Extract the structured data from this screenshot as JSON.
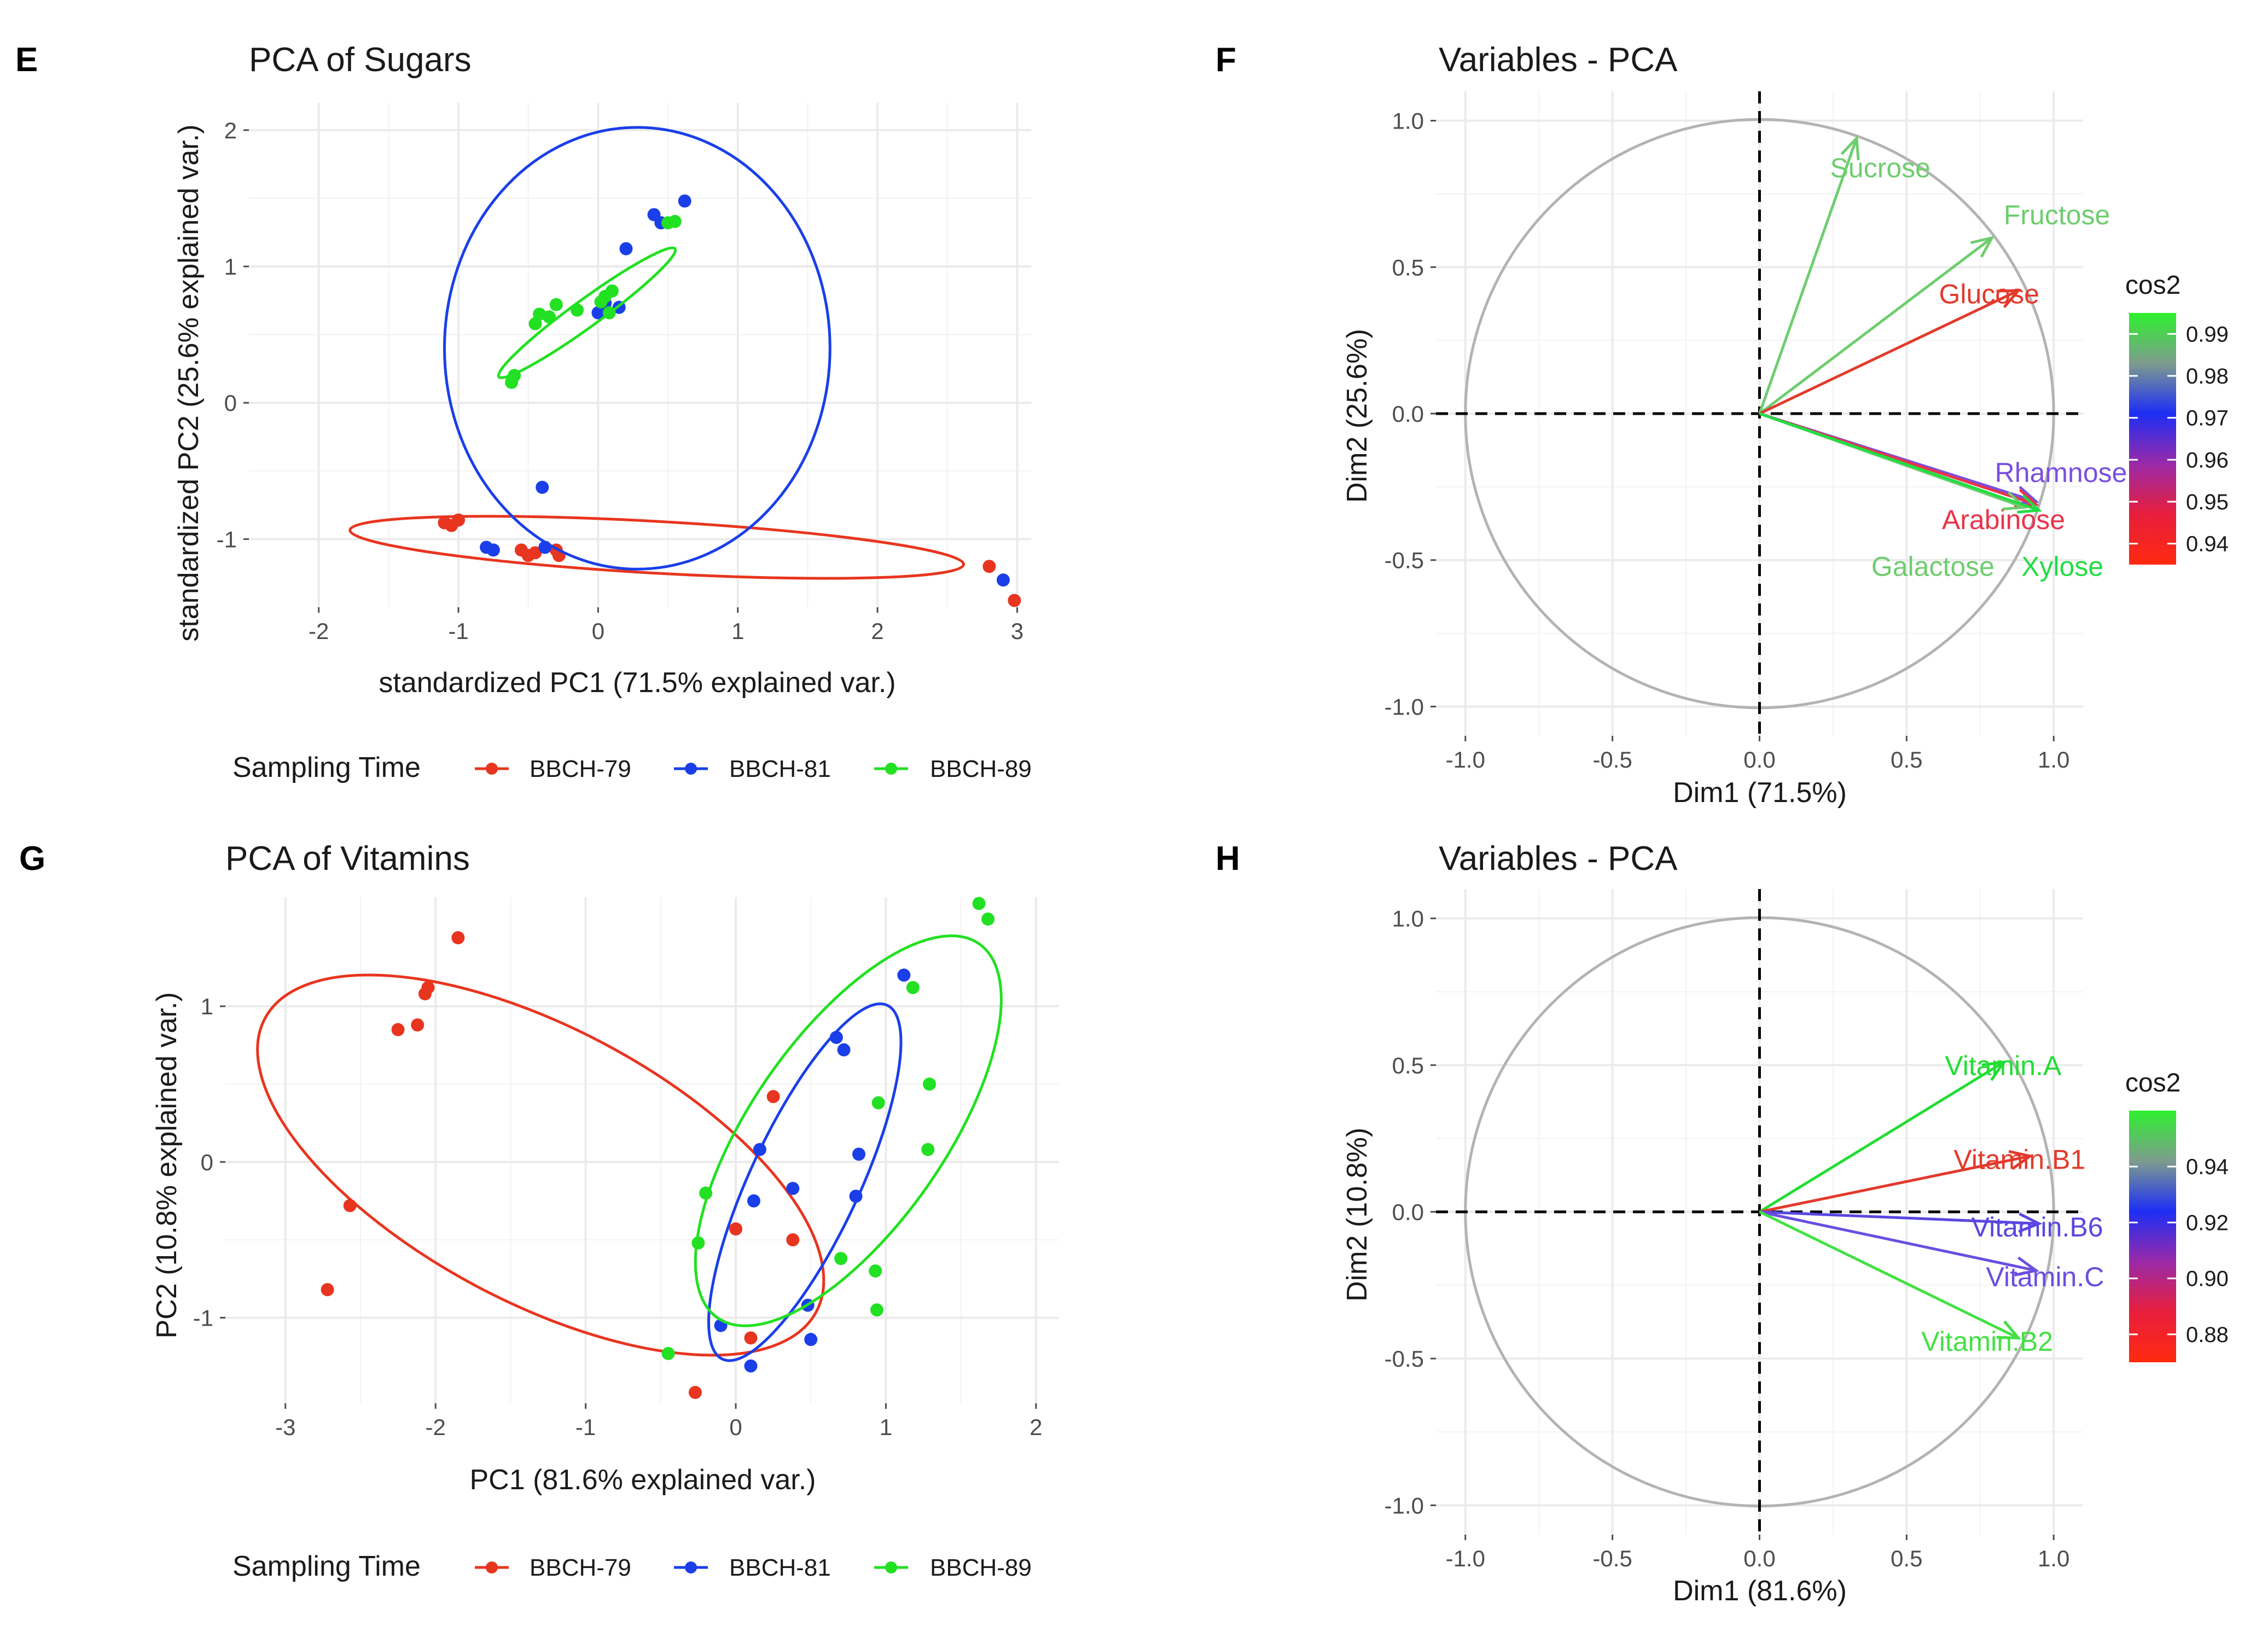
{
  "chart_data": [
    {
      "panel": "E",
      "type": "scatter",
      "title": "PCA of Sugars",
      "xlabel": "standardized PC1 (71.5% explained var.)",
      "ylabel": "standardized PC2 (25.6% explained var.)",
      "xlim": [
        -2.5,
        3.1
      ],
      "ylim": [
        -1.5,
        2.2
      ],
      "xticks": [
        -2,
        -1,
        0,
        1,
        2,
        3
      ],
      "yticks": [
        -1,
        0,
        1,
        2
      ],
      "legend": {
        "title": "Sampling Time",
        "position": "bottom"
      },
      "series": [
        {
          "name": "BBCH-79",
          "color": "#e8351f",
          "points": [
            [
              -1.1,
              -0.88
            ],
            [
              -1.05,
              -0.9
            ],
            [
              -1.0,
              -0.86
            ],
            [
              -0.55,
              -1.08
            ],
            [
              -0.5,
              -1.12
            ],
            [
              -0.45,
              -1.1
            ],
            [
              -0.3,
              -1.08
            ],
            [
              -0.28,
              -1.12
            ],
            [
              2.8,
              -1.2
            ],
            [
              2.98,
              -1.45
            ]
          ],
          "ellipse": {
            "cx": 0.42,
            "cy": -1.06,
            "rx": 2.2,
            "ry": 0.19,
            "angle": -3.2
          }
        },
        {
          "name": "BBCH-81",
          "color": "#1a3fe8",
          "points": [
            [
              -0.8,
              -1.06
            ],
            [
              -0.75,
              -1.08
            ],
            [
              -0.4,
              -0.62
            ],
            [
              -0.38,
              -1.06
            ],
            [
              0.0,
              0.66
            ],
            [
              0.05,
              0.73
            ],
            [
              0.15,
              0.7
            ],
            [
              0.2,
              1.13
            ],
            [
              0.4,
              1.38
            ],
            [
              0.45,
              1.32
            ],
            [
              0.62,
              1.48
            ],
            [
              2.9,
              -1.3
            ]
          ],
          "ellipse": {
            "cx": 0.28,
            "cy": 0.4,
            "rx": 1.38,
            "ry": 1.62,
            "angle": 0
          }
        },
        {
          "name": "BBCH-89",
          "color": "#22e022",
          "points": [
            [
              -0.62,
              0.15
            ],
            [
              -0.6,
              0.2
            ],
            [
              -0.45,
              0.58
            ],
            [
              -0.42,
              0.65
            ],
            [
              -0.35,
              0.63
            ],
            [
              -0.3,
              0.72
            ],
            [
              -0.15,
              0.68
            ],
            [
              0.02,
              0.74
            ],
            [
              0.05,
              0.78
            ],
            [
              0.1,
              0.82
            ],
            [
              0.5,
              1.32
            ],
            [
              0.55,
              1.33
            ],
            [
              0.08,
              0.66
            ]
          ],
          "ellipse": {
            "cx": -0.08,
            "cy": 0.66,
            "rx": 0.78,
            "ry": 0.1,
            "angle": 36
          }
        }
      ]
    },
    {
      "panel": "F",
      "type": "line",
      "title": "Variables - PCA",
      "xlabel": "Dim1 (71.5%)",
      "ylabel": "Dim2 (25.6%)",
      "xlim": [
        -1.1,
        1.1
      ],
      "ylim": [
        -1.1,
        1.1
      ],
      "xticks": [
        -1.0,
        -0.5,
        0.0,
        0.5,
        1.0
      ],
      "yticks": [
        -1.0,
        -0.5,
        0.0,
        0.5,
        1.0
      ],
      "tick_labels": [
        "-1.0",
        "-0.5",
        "0.0",
        "0.5",
        "1.0"
      ],
      "colorbar": {
        "title": "cos2",
        "min": 0.935,
        "max": 0.995,
        "ticks": [
          "0.99",
          "0.98",
          "0.97",
          "0.96",
          "0.95",
          "0.94"
        ],
        "tick_values": [
          0.99,
          0.98,
          0.97,
          0.96,
          0.95,
          0.94
        ]
      },
      "variables": [
        {
          "name": "Sucrose",
          "x": 0.33,
          "y": 0.94,
          "color": "#6ecd6e",
          "label_x": 0.24,
          "label_y": 0.84
        },
        {
          "name": "Fructose",
          "x": 0.79,
          "y": 0.6,
          "color": "#6ecd6e",
          "label_x": 0.83,
          "label_y": 0.68
        },
        {
          "name": "Glucose",
          "x": 0.88,
          "y": 0.42,
          "color": "#e23a2c",
          "label_x": 0.61,
          "label_y": 0.41
        },
        {
          "name": "Rhamnose",
          "x": 0.94,
          "y": -0.3,
          "color": "#7a4ee0",
          "label_x": 0.8,
          "label_y": -0.2
        },
        {
          "name": "Arabinose",
          "x": 0.94,
          "y": -0.31,
          "color": "#e8344a",
          "label_x": 0.62,
          "label_y": -0.36
        },
        {
          "name": "Galactose",
          "x": 0.9,
          "y": -0.32,
          "color": "#6ecd6e",
          "label_x": 0.38,
          "label_y": -0.52
        },
        {
          "name": "Xylose",
          "x": 0.95,
          "y": -0.33,
          "color": "#22dd44",
          "label_x": 0.89,
          "label_y": -0.52
        }
      ]
    },
    {
      "panel": "G",
      "type": "scatter",
      "title": "PCA of Vitamins",
      "xlabel": "PC1 (81.6% explained var.)",
      "ylabel": "PC2 (10.8% explained var.)",
      "xlim": [
        -3.4,
        2.15
      ],
      "ylim": [
        -1.55,
        1.7
      ],
      "xticks": [
        -3,
        -2,
        -1,
        0,
        1,
        2
      ],
      "yticks": [
        -1,
        0,
        1
      ],
      "legend": {
        "title": "Sampling Time",
        "position": "bottom"
      },
      "series": [
        {
          "name": "BBCH-79",
          "color": "#e8351f",
          "points": [
            [
              -2.72,
              -0.82
            ],
            [
              -2.57,
              -0.28
            ],
            [
              -2.25,
              0.85
            ],
            [
              -2.12,
              0.88
            ],
            [
              -2.07,
              1.08
            ],
            [
              -2.05,
              1.12
            ],
            [
              -1.85,
              1.44
            ],
            [
              -0.27,
              -1.48
            ],
            [
              0.0,
              -0.43
            ],
            [
              0.1,
              -1.13
            ],
            [
              0.25,
              0.42
            ],
            [
              0.38,
              -0.5
            ]
          ],
          "ellipse": {
            "cx": -1.3,
            "cy": -0.02,
            "rx": 2.08,
            "ry": 0.88,
            "angle": -28
          }
        },
        {
          "name": "BBCH-81",
          "color": "#1a3fe8",
          "points": [
            [
              -0.1,
              -1.05
            ],
            [
              0.1,
              -1.31
            ],
            [
              0.12,
              -0.25
            ],
            [
              0.16,
              0.08
            ],
            [
              0.38,
              -0.17
            ],
            [
              0.48,
              -0.92
            ],
            [
              0.5,
              -1.14
            ],
            [
              0.67,
              0.8
            ],
            [
              0.72,
              0.72
            ],
            [
              0.8,
              -0.22
            ],
            [
              0.82,
              0.05
            ],
            [
              1.12,
              1.2
            ]
          ],
          "ellipse": {
            "cx": 0.46,
            "cy": -0.13,
            "rx": 1.3,
            "ry": 0.35,
            "angle": 65
          }
        },
        {
          "name": "BBCH-89",
          "color": "#22e022",
          "points": [
            [
              -0.45,
              -1.23
            ],
            [
              -0.25,
              -0.52
            ],
            [
              -0.2,
              -0.2
            ],
            [
              0.7,
              -0.62
            ],
            [
              0.93,
              -0.7
            ],
            [
              0.94,
              -0.95
            ],
            [
              0.95,
              0.38
            ],
            [
              1.18,
              1.12
            ],
            [
              1.28,
              0.08
            ],
            [
              1.29,
              0.5
            ],
            [
              1.62,
              1.66
            ],
            [
              1.68,
              1.56
            ]
          ],
          "ellipse": {
            "cx": 0.75,
            "cy": 0.2,
            "rx": 1.52,
            "ry": 0.62,
            "angle": 55
          }
        }
      ]
    },
    {
      "panel": "H",
      "type": "line",
      "title": "Variables - PCA",
      "xlabel": "Dim1 (81.6%)",
      "ylabel": "Dim2 (10.8%)",
      "xlim": [
        -1.1,
        1.1
      ],
      "ylim": [
        -1.1,
        1.1
      ],
      "xticks": [
        -1.0,
        -0.5,
        0.0,
        0.5,
        1.0
      ],
      "yticks": [
        -1.0,
        -0.5,
        0.0,
        0.5,
        1.0
      ],
      "tick_labels": [
        "-1.0",
        "-0.5",
        "0.0",
        "0.5",
        "1.0"
      ],
      "colorbar": {
        "title": "cos2",
        "min": 0.87,
        "max": 0.96,
        "ticks": [
          "0.94",
          "0.92",
          "0.90",
          "0.88"
        ],
        "tick_values": [
          0.94,
          0.92,
          0.9,
          0.88
        ]
      },
      "variables": [
        {
          "name": "Vitamin.A",
          "x": 0.83,
          "y": 0.51,
          "color": "#22dd33",
          "label_x": 0.63,
          "label_y": 0.5
        },
        {
          "name": "Vitamin.B1",
          "x": 0.92,
          "y": 0.19,
          "color": "#e23a2c",
          "label_x": 0.66,
          "label_y": 0.18
        },
        {
          "name": "Vitamin.B6",
          "x": 0.95,
          "y": -0.04,
          "color": "#5a46e0",
          "label_x": 0.72,
          "label_y": -0.05
        },
        {
          "name": "Vitamin.C",
          "x": 0.94,
          "y": -0.2,
          "color": "#6a4ee0",
          "label_x": 0.77,
          "label_y": -0.22
        },
        {
          "name": "Vitamin.B2",
          "x": 0.88,
          "y": -0.43,
          "color": "#44e044",
          "label_x": 0.55,
          "label_y": -0.44
        }
      ]
    }
  ],
  "panel_letters": [
    "E",
    "F",
    "G",
    "H"
  ],
  "legend_labels": [
    "BBCH-79",
    "BBCH-81",
    "BBCH-89"
  ],
  "legend_title": "Sampling Time"
}
